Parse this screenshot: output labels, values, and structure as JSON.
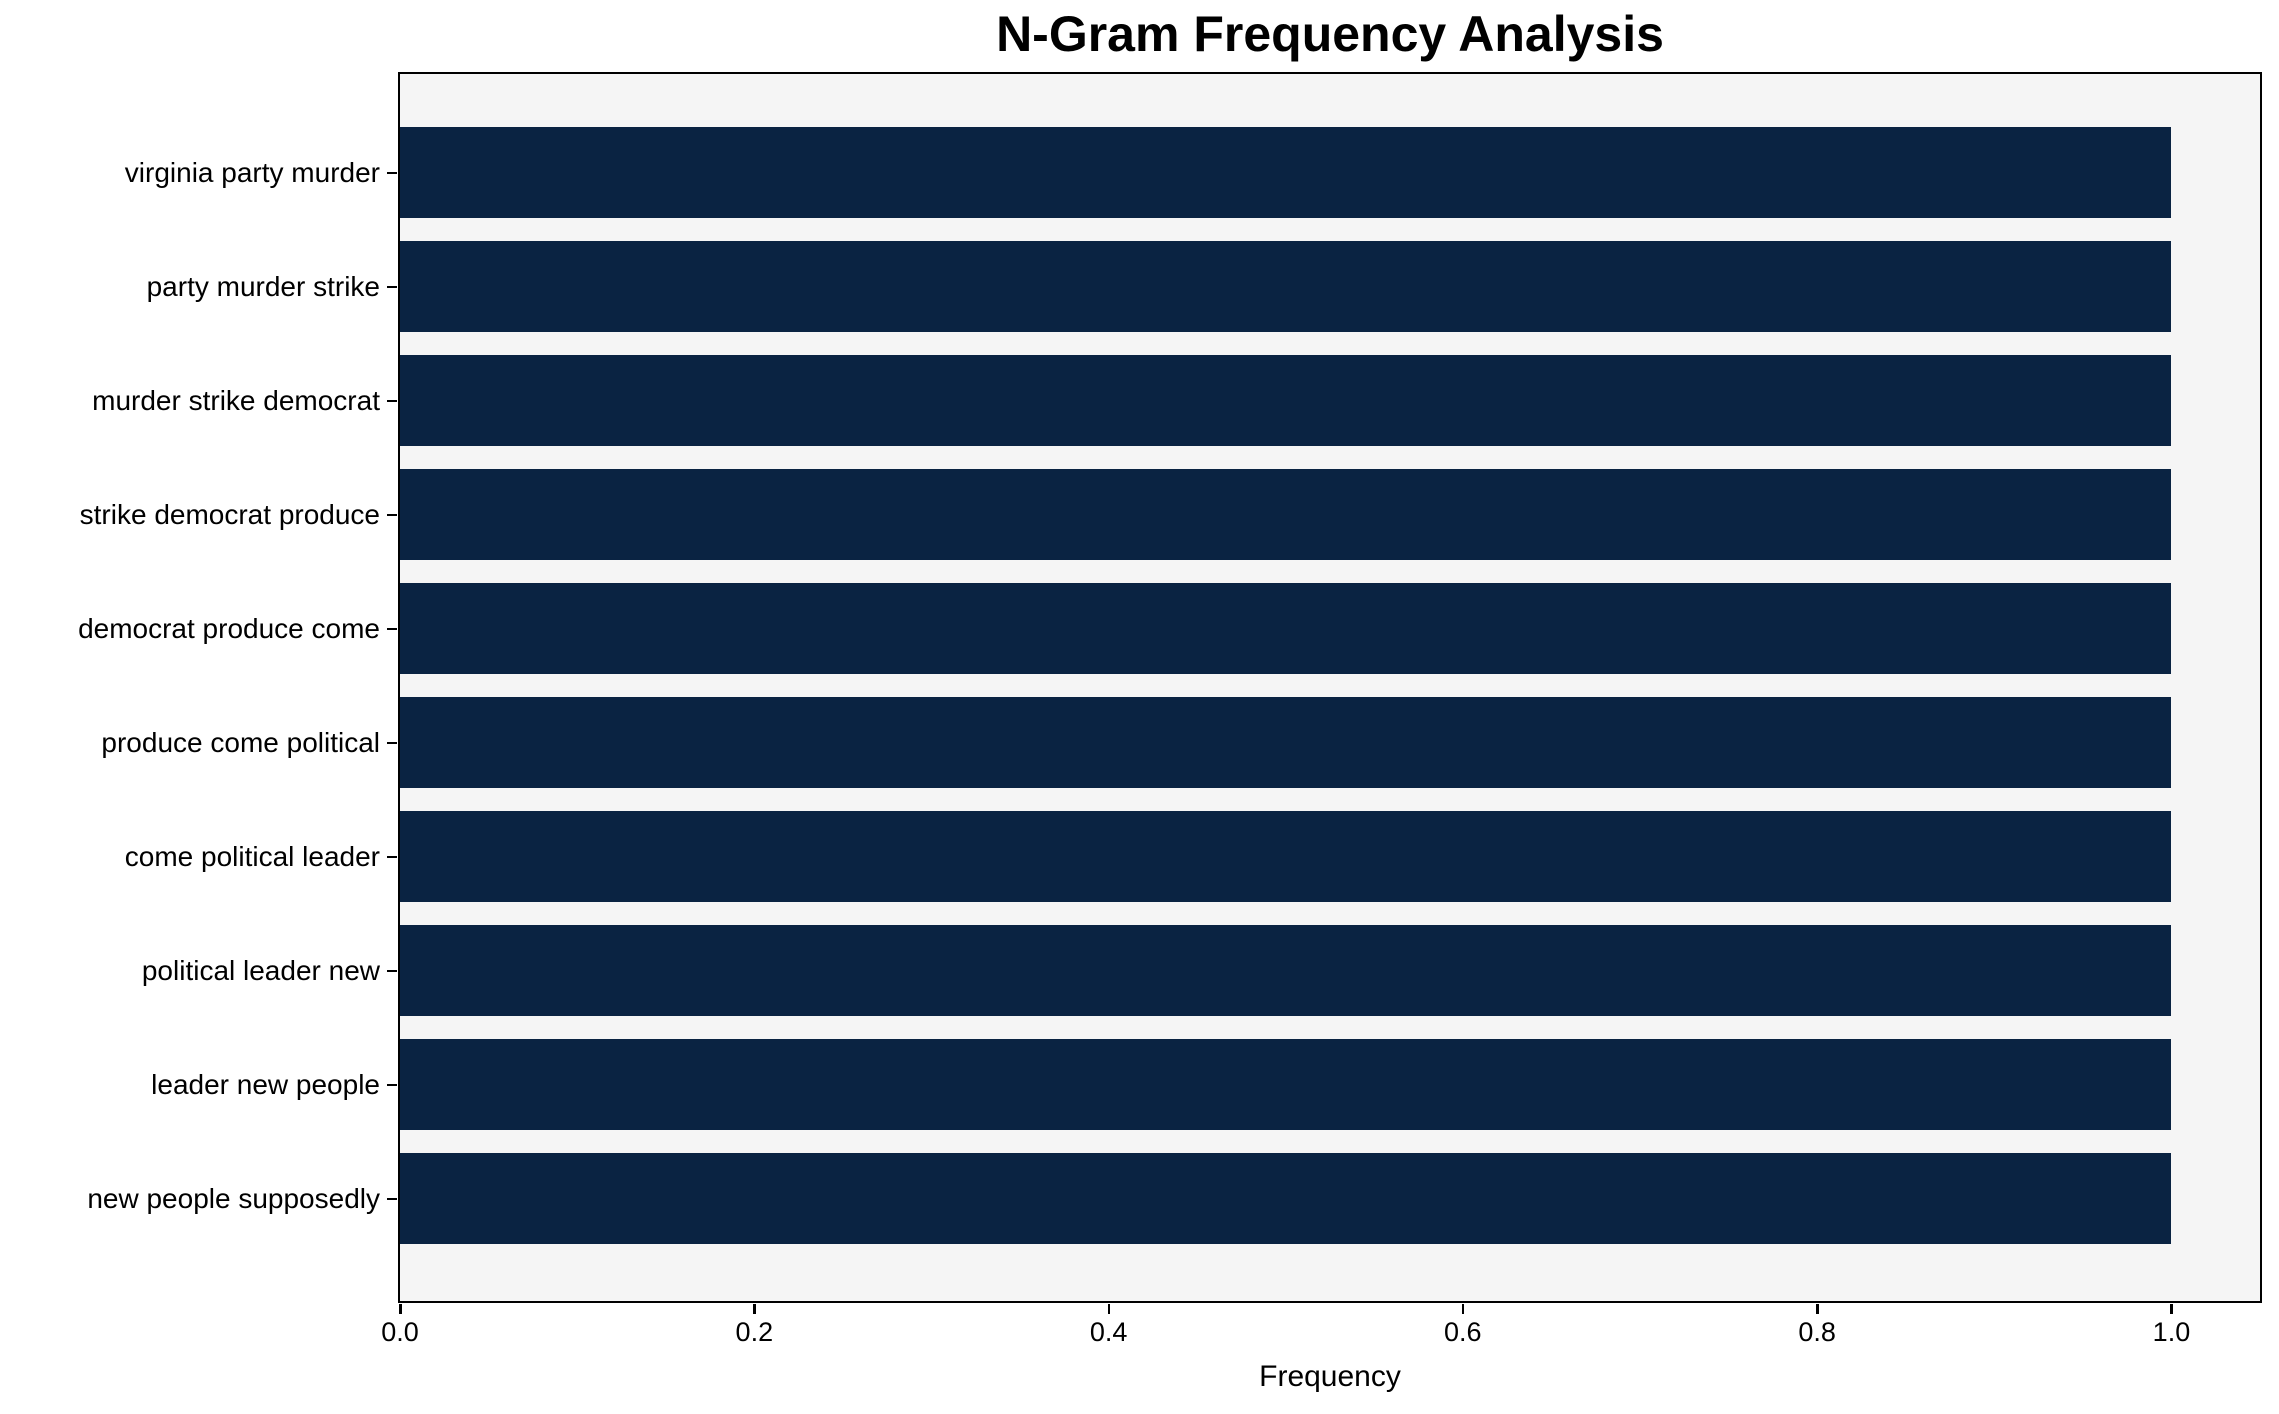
{
  "chart_data": {
    "type": "bar",
    "orientation": "horizontal",
    "title": "N-Gram Frequency Analysis",
    "xlabel": "Frequency",
    "ylabel": "",
    "categories": [
      "virginia party murder",
      "party murder strike",
      "murder strike democrat",
      "strike democrat produce",
      "democrat produce come",
      "produce come political",
      "come political leader",
      "political leader new",
      "leader new people",
      "new people supposedly"
    ],
    "values": [
      1.0,
      1.0,
      1.0,
      1.0,
      1.0,
      1.0,
      1.0,
      1.0,
      1.0,
      1.0
    ],
    "xlim": [
      0,
      1.05
    ],
    "xticks": [
      0.0,
      0.2,
      0.4,
      0.6,
      0.8,
      1.0
    ],
    "xtick_labels": [
      "0.0",
      "0.2",
      "0.4",
      "0.6",
      "0.8",
      "1.0"
    ],
    "grid": false,
    "legend": null,
    "bar_color": "#0a2342",
    "plot_bg": "#f5f5f5",
    "figure_bg": "#ffffff",
    "spine_color": "#000000"
  }
}
